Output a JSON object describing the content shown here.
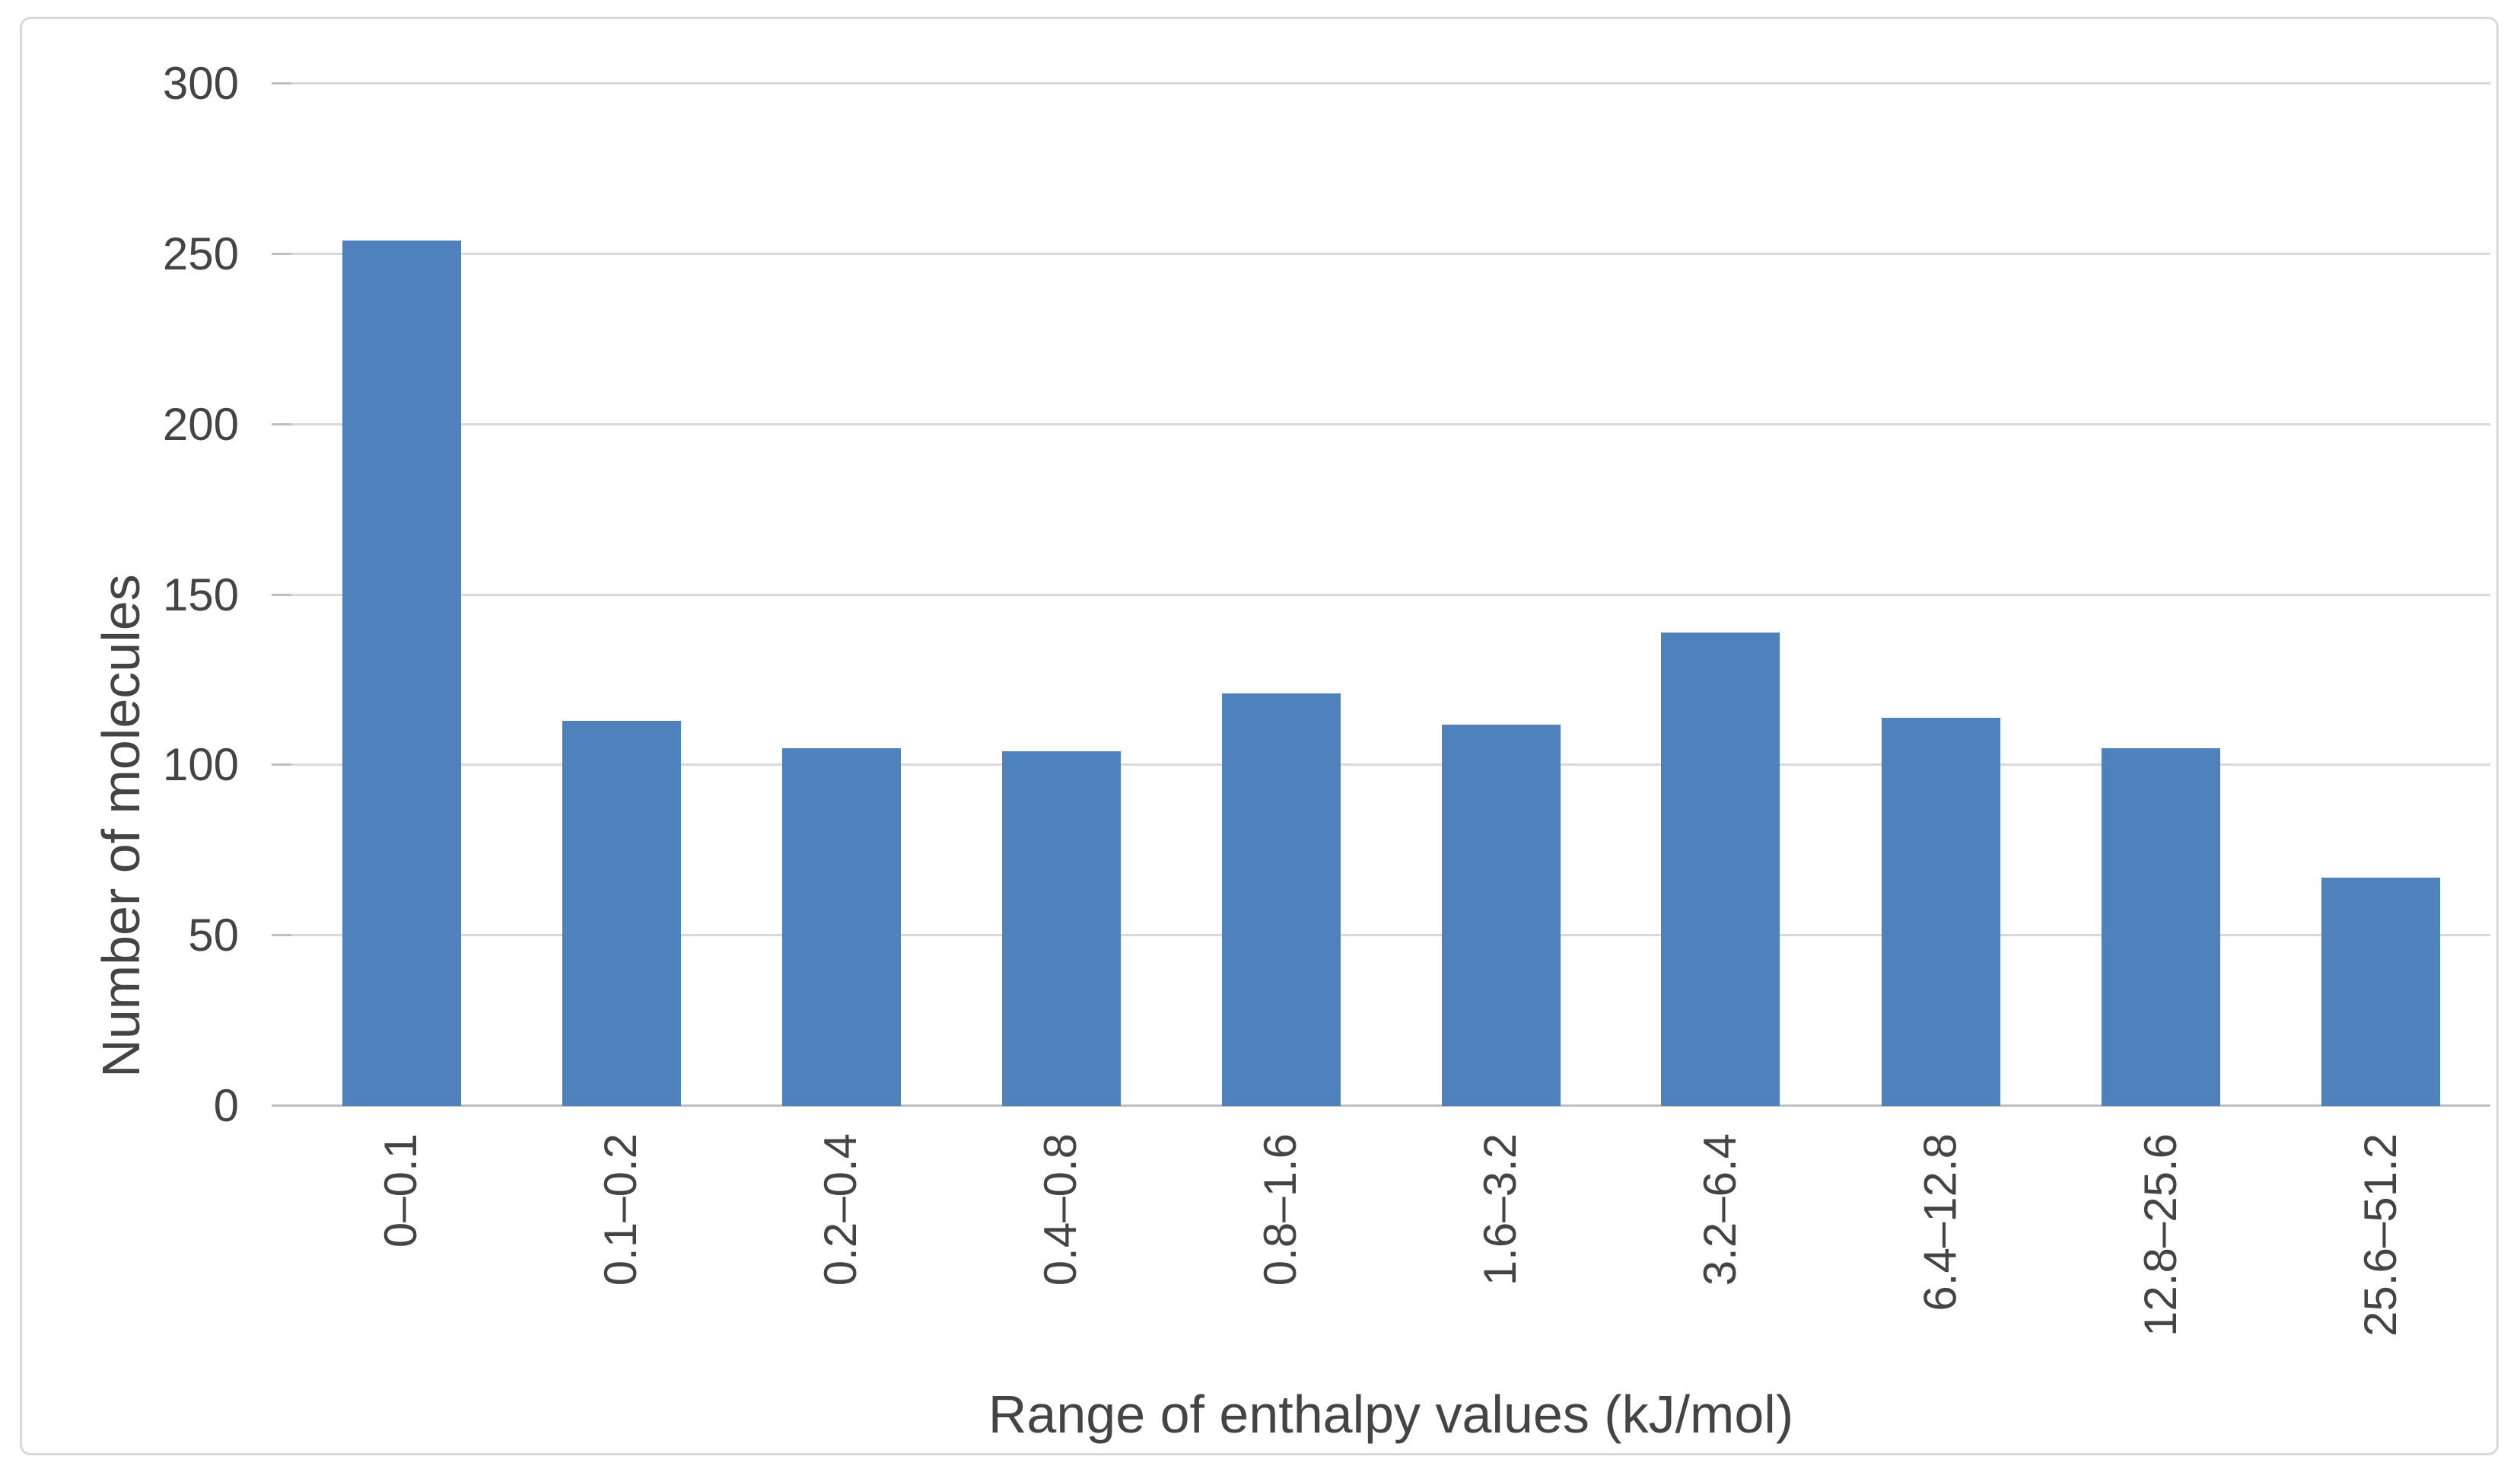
{
  "chart_data": {
    "type": "bar",
    "title": "",
    "categories": [
      "0–0.1",
      "0.1–0.2",
      "0.2–0.4",
      "0.4–0.8",
      "0.8–1.6",
      "1.6–3.2",
      "3.2–6.4",
      "6.4–12.8",
      "12.8–25.6",
      "25.6–51.2"
    ],
    "values": [
      254,
      113,
      105,
      104,
      121,
      112,
      139,
      114,
      105,
      67
    ],
    "xlabel": "Range of enthalpy values (kJ/mol)",
    "ylabel": "Number of molecules",
    "ylim": [
      0,
      300
    ],
    "yticks": [
      0,
      50,
      100,
      150,
      200,
      250,
      300
    ],
    "grid": true,
    "legend": "none",
    "bar_color": "#4F81BD",
    "gridline_color": "#D9D9D9",
    "axis_line_color": "#BFBFBF",
    "text_color": "#444444",
    "border_color": "#D9D9D9",
    "background": "#FFFFFF"
  }
}
